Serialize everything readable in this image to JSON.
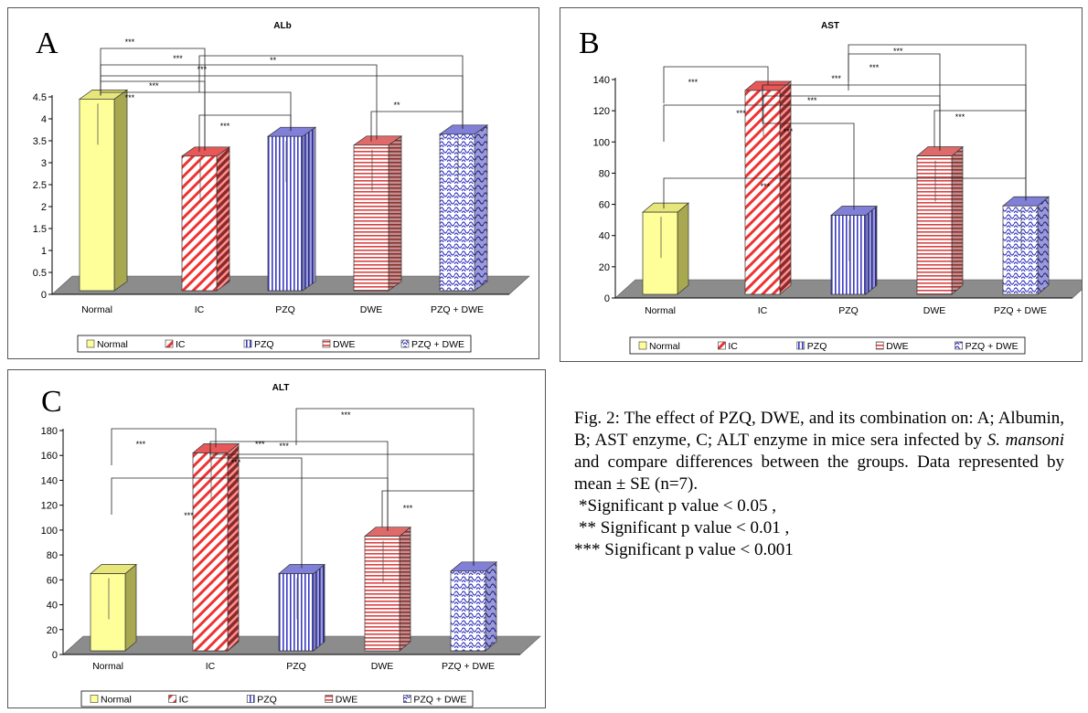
{
  "chart_data": [
    {
      "id": "A",
      "type": "bar",
      "panel_label": "A",
      "title": "ALb",
      "categories": [
        "Normal",
        "IC",
        "PZQ",
        "DWE",
        "PZQ + DWE"
      ],
      "values": [
        4.45,
        3.15,
        3.6,
        3.4,
        3.65
      ],
      "ylim": [
        0,
        4.5
      ],
      "yticks": [
        "0",
        "0.5",
        "1",
        "1.5",
        "2",
        "2.5",
        "3",
        "3.5",
        "4",
        "4.5"
      ],
      "legend": [
        "Normal",
        "IC",
        "PZQ",
        "DWE",
        "PZQ + DWE"
      ],
      "legend_position": "bottom",
      "annotations": [
        {
          "from": "Normal",
          "to": "IC",
          "label": "***"
        },
        {
          "from": "Normal",
          "to": "DWE",
          "label": "***"
        },
        {
          "from": "Normal",
          "to": "PZQ + DWE",
          "label": "***"
        },
        {
          "from": "IC",
          "to": "PZQ + DWE",
          "label": "**"
        },
        {
          "from": "Normal",
          "to": "PZQ",
          "label": "***"
        },
        {
          "from": "IC",
          "to": "PZQ",
          "label": "***"
        },
        {
          "from": "DWE",
          "to": "PZQ + DWE",
          "label": "**"
        },
        {
          "from": "Normal",
          "to": "IC",
          "label": "***"
        }
      ]
    },
    {
      "id": "B",
      "type": "bar",
      "panel_label": "B",
      "title": "AST",
      "categories": [
        "Normal",
        "IC",
        "PZQ",
        "DWE",
        "PZQ + DWE"
      ],
      "values": [
        55,
        133,
        53,
        91,
        59
      ],
      "ylim": [
        0,
        140
      ],
      "yticks": [
        "0",
        "20",
        "40",
        "60",
        "80",
        "100",
        "120",
        "140"
      ],
      "legend": [
        "Normal",
        "IC",
        "PZQ",
        "DWE",
        "PZQ + DWE"
      ],
      "legend_position": "bottom",
      "annotations": [
        {
          "from": "Normal",
          "to": "IC",
          "label": "***"
        },
        {
          "from": "PZQ",
          "to": "PZQ + DWE",
          "label": "***"
        },
        {
          "from": "PZQ",
          "to": "DWE",
          "label": "***"
        },
        {
          "from": "IC",
          "to": "PZQ + DWE",
          "label": "***"
        },
        {
          "from": "IC",
          "to": "DWE",
          "label": "***"
        },
        {
          "from": "Normal",
          "to": "DWE",
          "label": "***"
        },
        {
          "from": "DWE",
          "to": "PZQ + DWE",
          "label": "***"
        },
        {
          "from": "IC",
          "to": "PZQ",
          "label": "***"
        },
        {
          "from": "Normal",
          "to": "PZQ + DWE",
          "label": "***"
        }
      ]
    },
    {
      "id": "C",
      "type": "bar",
      "panel_label": "C",
      "title": "ALT",
      "categories": [
        "Normal",
        "IC",
        "PZQ",
        "DWE",
        "PZQ + DWE"
      ],
      "values": [
        65,
        162,
        65,
        95,
        67
      ],
      "ylim": [
        0,
        180
      ],
      "yticks": [
        "0",
        "20",
        "40",
        "60",
        "80",
        "100",
        "120",
        "140",
        "160",
        "180"
      ],
      "legend": [
        "Normal",
        "IC",
        "PZQ",
        "DWE",
        "PZQ + DWE"
      ],
      "legend_position": "bottom",
      "annotations": [
        {
          "from": "PZQ",
          "to": "PZQ + DWE",
          "label": "***"
        },
        {
          "from": "Normal",
          "to": "IC",
          "label": "***"
        },
        {
          "from": "IC",
          "to": "DWE",
          "label": "***"
        },
        {
          "from": "IC",
          "to": "PZQ",
          "label": "***"
        },
        {
          "from": "IC",
          "to": "PZQ + DWE",
          "label": "***"
        },
        {
          "from": "DWE",
          "to": "PZQ + DWE",
          "label": "***"
        },
        {
          "from": "Normal",
          "to": "DWE",
          "label": "***"
        }
      ]
    }
  ],
  "series_colors": {
    "Normal": "#ffff99",
    "IC": "#ff3b3b",
    "PZQ": "#3333cc",
    "DWE": "#e05050",
    "PZQ + DWE": "#3333cc"
  },
  "caption": {
    "line1_prefix": "Fig. 2: The effect of PZQ, DWE, and its combination on: A; Albumin, B; AST enzyme, C; ALT enzyme in mice sera infected by ",
    "species_a": "S.",
    "species_b": "mansoni",
    "line1_suffix": " and compare differences between the groups. Data represented by mean ± SE (n=7).",
    "sig1": "*Significant p value < 0.05 ,",
    "sig2": "** Significant p value < 0.01 ,",
    "sig3": "*** Significant p value < 0.001"
  }
}
